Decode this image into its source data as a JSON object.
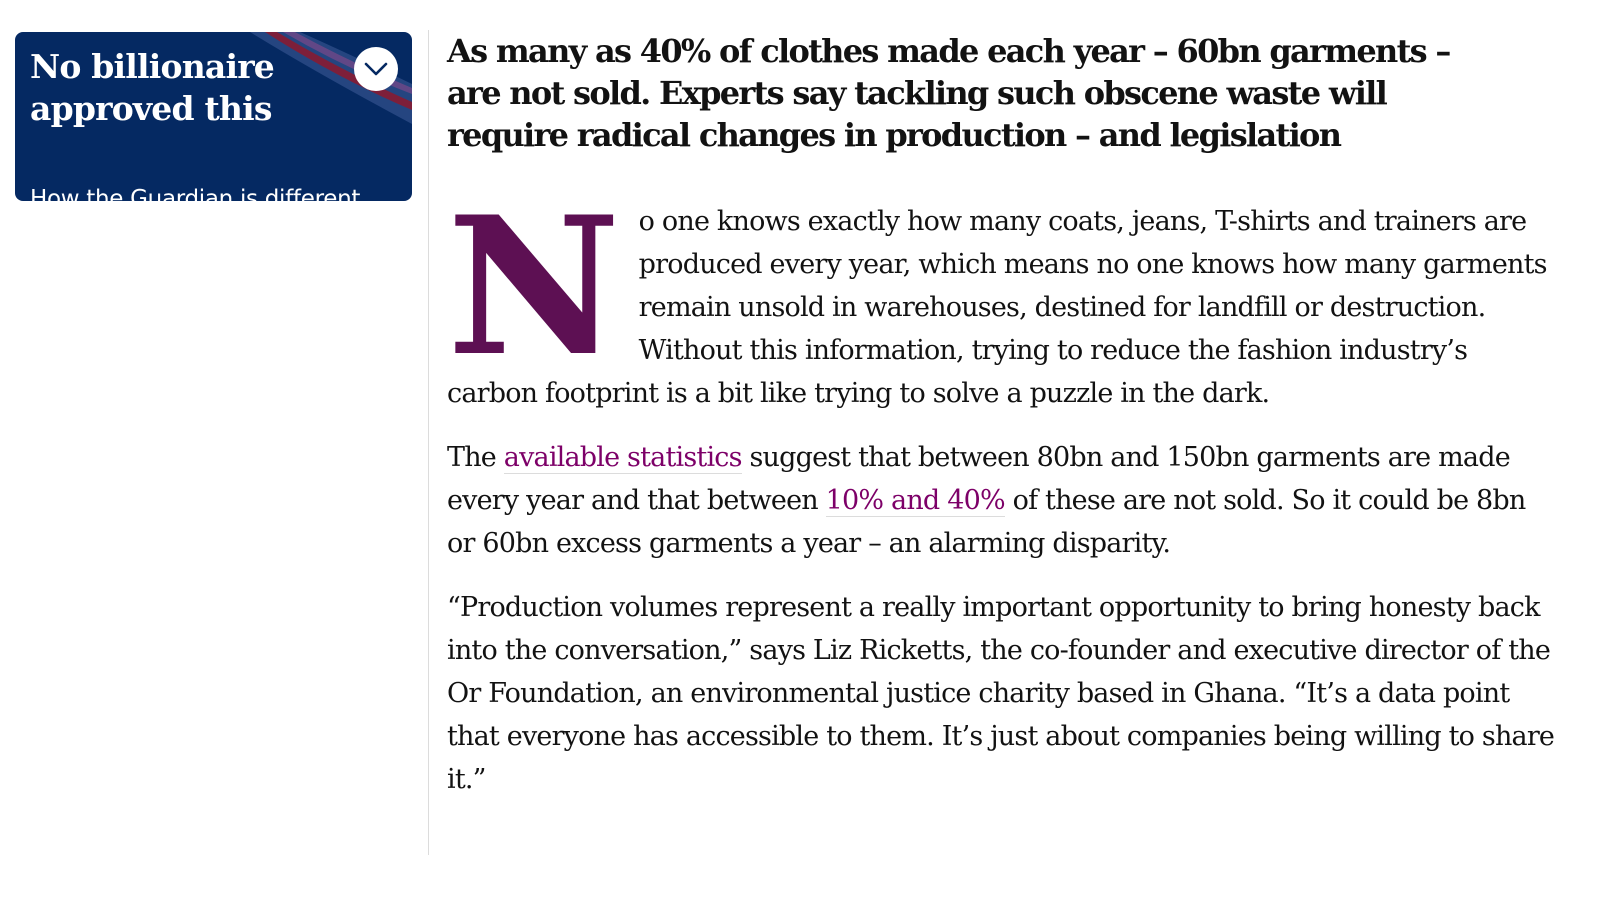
{
  "promo": {
    "title": "No billionaire approved this",
    "subtitle": "How the Guardian is different",
    "toggle_icon": "chevron-down-icon",
    "colors": {
      "background": "#052962",
      "accent": "#c70000",
      "text": "#ffffff"
    }
  },
  "article": {
    "standfirst": "As many as 40% of clothes made each year – 60bn garments – are not sold. Experts say tackling such obscene waste will require radical changes in production – and legislation",
    "dropcap": "N",
    "paragraphs": [
      {
        "text": "o one knows exactly how many coats, jeans, T-shirts and trainers are produced every year, which means no one knows how many garments remain unsold in warehouses, destined for landfill or destruction. Without this information, trying to reduce the fashion industry’s carbon footprint is a bit like trying to solve a puzzle in the dark."
      },
      {
        "t1": "The ",
        "link1": "available statistics",
        "t2": " suggest that between 80bn and 150bn garments are made every year and that between ",
        "link2": "10% and 40%",
        "t3": " of these are not sold. So it could be 8bn or 60bn excess garments a year – an alarming disparity."
      },
      {
        "text": "“Production volumes represent a really important opportunity to bring honesty back into the conversation,” says Liz Ricketts, the co-founder and executive director of the Or Foundation, an environmental justice charity based in Ghana. “It’s a data point that everyone has accessible to them. It’s just about companies being willing to share it.”"
      }
    ],
    "colors": {
      "dropcap": "#5d1053",
      "link": "#7d0068",
      "text": "#121212"
    }
  }
}
